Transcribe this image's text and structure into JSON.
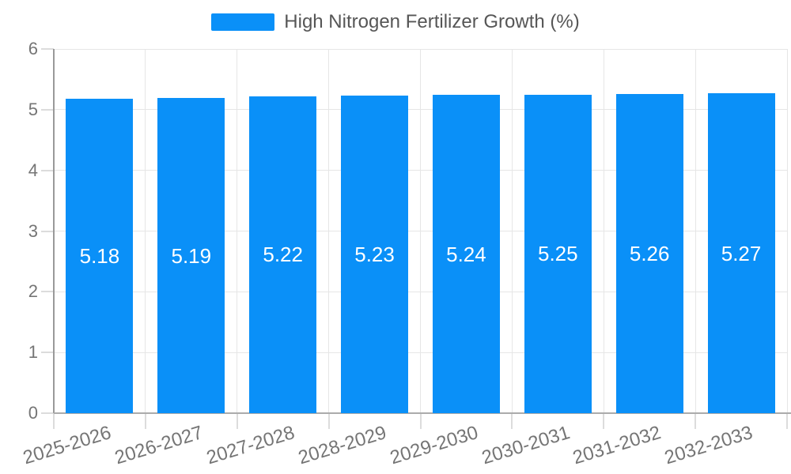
{
  "legend": {
    "items": [
      {
        "label": "High Nitrogen Fertilizer Growth (%)",
        "color": "#0a90f8"
      }
    ],
    "position": "top"
  },
  "colors": {
    "bar": "#0a90f8",
    "gridline": "#e6e6e6",
    "y_axis_line": "#999999",
    "x_axis_line": "#ababab",
    "tick": "#dcdcdc",
    "axis_label_text": "#757575",
    "legend_text": "#565656",
    "data_label_text": "#ffffff",
    "background": "#ffffff"
  },
  "chart_data": {
    "type": "bar",
    "title": "",
    "categories": [
      "2025-2026",
      "2026-2027",
      "2027-2028",
      "2028-2029",
      "2029-2030",
      "2030-2031",
      "2031-2032",
      "2032-2033"
    ],
    "series": [
      {
        "name": "High Nitrogen Fertilizer Growth (%)",
        "values": [
          5.18,
          5.19,
          5.22,
          5.23,
          5.24,
          5.25,
          5.26,
          5.27
        ]
      }
    ],
    "data_labels": [
      "5.18",
      "5.19",
      "5.22",
      "5.23",
      "5.24",
      "5.25",
      "5.26",
      "5.27"
    ],
    "y_tick_labels": [
      "0",
      "1",
      "2",
      "3",
      "4",
      "5",
      "6"
    ],
    "ylim": [
      0,
      6
    ],
    "xlabel": "",
    "ylabel": "",
    "grid": true,
    "legend_position": "top",
    "x_label_rotation_deg": -17
  }
}
